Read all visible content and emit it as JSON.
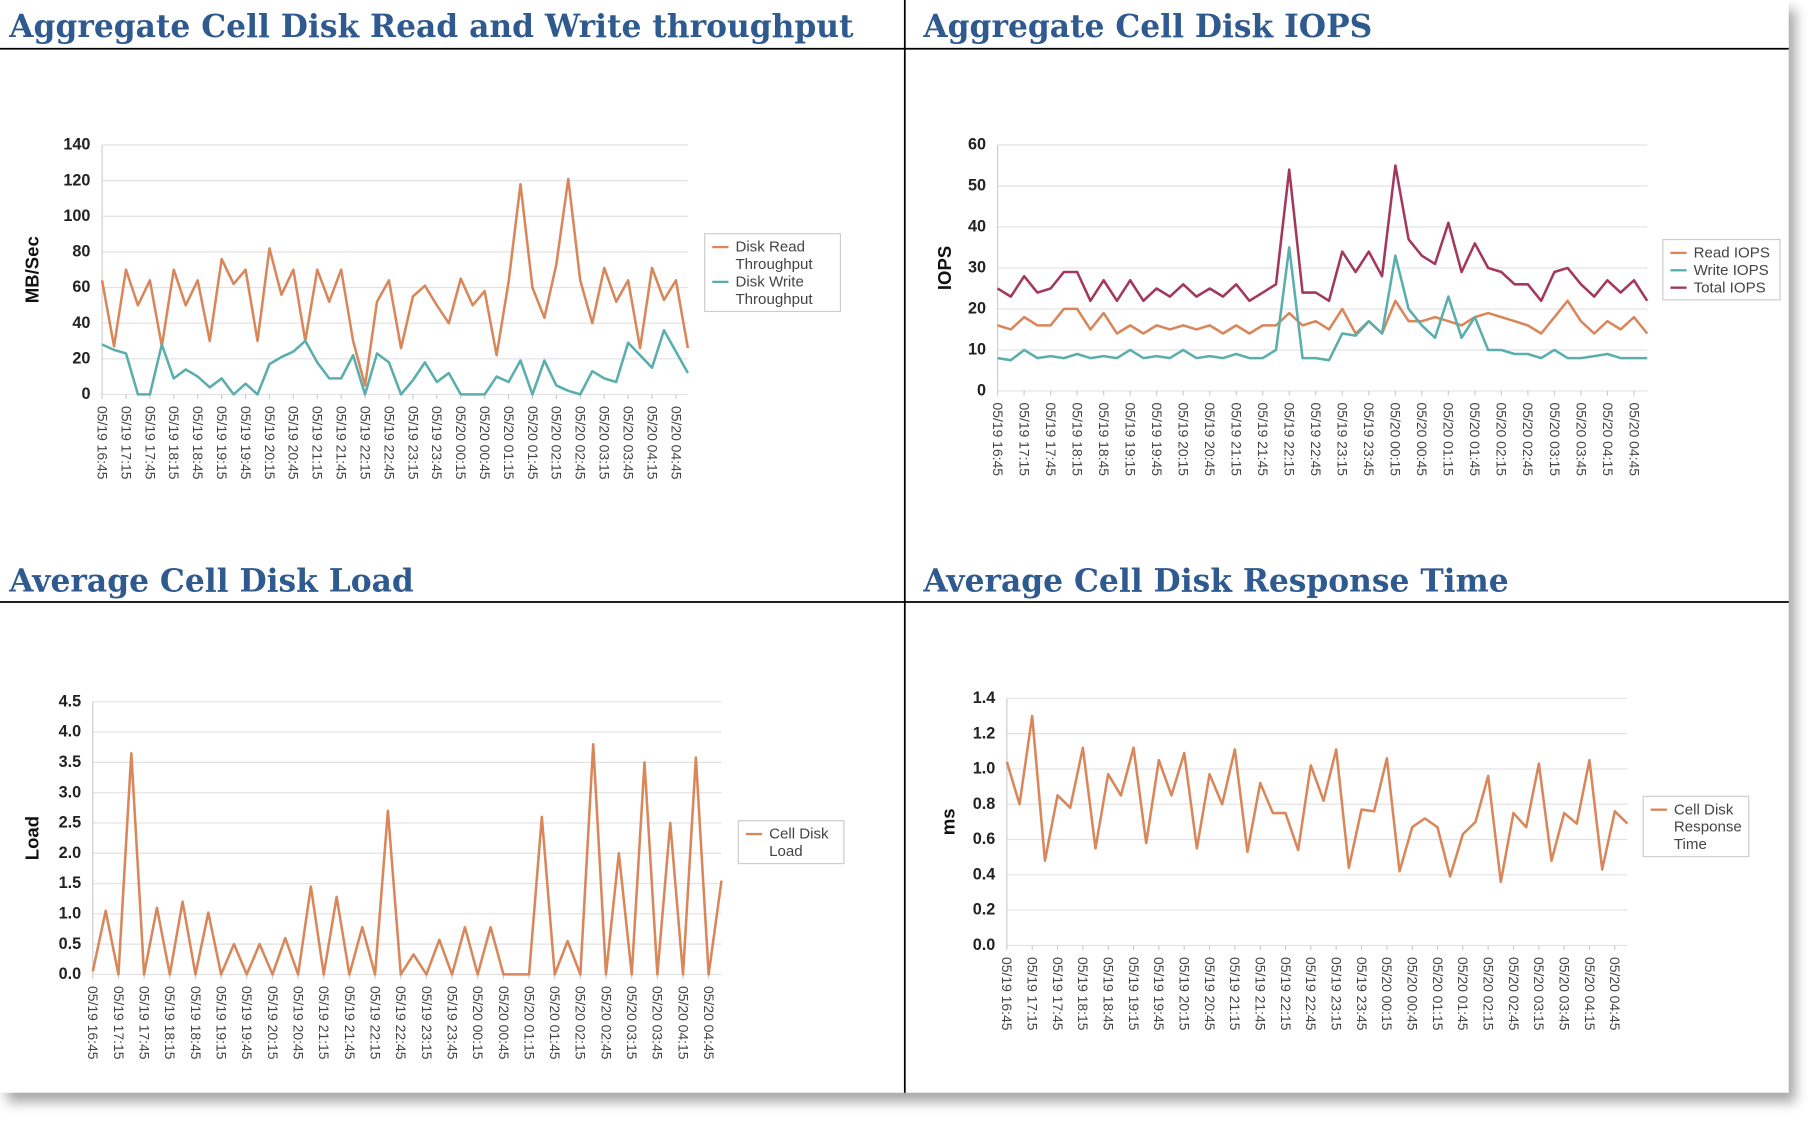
{
  "chart_data": [
    {
      "type": "line",
      "title": "Aggregate Cell Disk Read and Write throughput",
      "y_label": "MB/Sec",
      "categories": [
        "05/19 16:45",
        null,
        "05/19 17:15",
        null,
        "05/19 17:45",
        null,
        "05/19 18:15",
        null,
        "05/19 18:45",
        null,
        "05/19 19:15",
        null,
        "05/19 19:45",
        null,
        "05/19 20:15",
        null,
        "05/19 20:45",
        null,
        "05/19 21:15",
        null,
        "05/19 21:45",
        null,
        "05/19 22:15",
        null,
        "05/19 22:45",
        null,
        "05/19 23:15",
        null,
        "05/19 23:45",
        null,
        "05/20 00:15",
        null,
        "05/20 00:45",
        null,
        "05/20 01:15",
        null,
        "05/20 01:45",
        null,
        "05/20 02:15",
        null,
        "05/20 02:45",
        null,
        "05/20 03:15",
        null,
        "05/20 03:45",
        null,
        "05/20 04:15",
        null,
        "05/20 04:45",
        null
      ],
      "series": [
        {
          "name": "Disk Read Throughput",
          "color": "#d9875a",
          "values": [
            64,
            27,
            70,
            50,
            64,
            27,
            70,
            50,
            64,
            30,
            76,
            62,
            70,
            30,
            82,
            56,
            70,
            30,
            70,
            52,
            70,
            30,
            5,
            52,
            64,
            26,
            55,
            61,
            50,
            40,
            65,
            50,
            58,
            22,
            63,
            118,
            60,
            43,
            73,
            121,
            64,
            40,
            71,
            52,
            64,
            26,
            71,
            53,
            64,
            26
          ]
        },
        {
          "name": "Disk Write Throughput",
          "color": "#5aaead",
          "values": [
            28,
            25,
            23,
            0,
            0,
            28,
            9,
            14,
            10,
            4,
            9,
            0,
            6,
            0,
            17,
            21,
            24,
            30,
            18,
            9,
            9,
            22,
            0,
            23,
            18,
            0,
            8,
            18,
            7,
            12,
            0,
            0,
            0,
            10,
            7,
            19,
            0,
            19,
            5,
            2,
            0,
            13,
            9,
            7,
            29,
            22,
            15,
            36,
            24,
            12
          ]
        }
      ],
      "ylim": [
        0,
        140
      ],
      "yticks": [
        0,
        20,
        40,
        60,
        80,
        100,
        120,
        140
      ],
      "grid": true,
      "legend": "right"
    },
    {
      "type": "line",
      "title": "Aggregate Cell Disk IOPS",
      "y_label": "IOPS",
      "categories": [
        "05/19 16:45",
        null,
        "05/19 17:15",
        null,
        "05/19 17:45",
        null,
        "05/19 18:15",
        null,
        "05/19 18:45",
        null,
        "05/19 19:15",
        null,
        "05/19 19:45",
        null,
        "05/19 20:15",
        null,
        "05/19 20:45",
        null,
        "05/19 21:15",
        null,
        "05/19 21:45",
        null,
        "05/19 22:15",
        null,
        "05/19 22:45",
        null,
        "05/19 23:15",
        null,
        "05/19 23:45",
        null,
        "05/20 00:15",
        null,
        "05/20 00:45",
        null,
        "05/20 01:15",
        null,
        "05/20 01:45",
        null,
        "05/20 02:15",
        null,
        "05/20 02:45",
        null,
        "05/20 03:15",
        null,
        "05/20 03:45",
        null,
        "05/20 04:15",
        null,
        "05/20 04:45",
        null
      ],
      "series": [
        {
          "name": "Read IOPS",
          "color": "#d9875a",
          "values": [
            16,
            15,
            18,
            16,
            16,
            20,
            20,
            15,
            19,
            14,
            16,
            14,
            16,
            15,
            16,
            15,
            16,
            14,
            16,
            14,
            16,
            16,
            19,
            16,
            17,
            15,
            20,
            14,
            17,
            14,
            22,
            17,
            17,
            18,
            17,
            16,
            18,
            19,
            18,
            17,
            16,
            14,
            18,
            22,
            17,
            14,
            17,
            15,
            18,
            14
          ]
        },
        {
          "name": "Write IOPS",
          "color": "#5aaead",
          "values": [
            8,
            7.5,
            10,
            8,
            8.5,
            8,
            9,
            8,
            8.5,
            8,
            10,
            8,
            8.5,
            8,
            10,
            8,
            8.5,
            8,
            9,
            8,
            8,
            10,
            35,
            8,
            8,
            7.5,
            14,
            13.5,
            17,
            14,
            33,
            20,
            16,
            13,
            23,
            13,
            18,
            10,
            10,
            9,
            9,
            8,
            10,
            8,
            8,
            8.5,
            9,
            8,
            8,
            8
          ]
        },
        {
          "name": "Total IOPS",
          "color": "#a3385f",
          "values": [
            25,
            23,
            28,
            24,
            25,
            29,
            29,
            22,
            27,
            22,
            27,
            22,
            25,
            23,
            26,
            23,
            25,
            23,
            26,
            22,
            24,
            26,
            54,
            24,
            24,
            22,
            34,
            29,
            34,
            28,
            55,
            37,
            33,
            31,
            41,
            29,
            36,
            30,
            29,
            26,
            26,
            22,
            29,
            30,
            26,
            23,
            27,
            24,
            27,
            22
          ]
        }
      ],
      "ylim": [
        0,
        60
      ],
      "yticks": [
        0,
        10,
        20,
        30,
        40,
        50,
        60
      ],
      "grid": true,
      "legend": "right"
    },
    {
      "type": "line",
      "title": "Average Cell Disk Load",
      "y_label": "Load",
      "categories": [
        "05/19 16:45",
        null,
        "05/19 17:15",
        null,
        "05/19 17:45",
        null,
        "05/19 18:15",
        null,
        "05/19 18:45",
        null,
        "05/19 19:15",
        null,
        "05/19 19:45",
        null,
        "05/19 20:15",
        null,
        "05/19 20:45",
        null,
        "05/19 21:15",
        null,
        "05/19 21:45",
        null,
        "05/19 22:15",
        null,
        "05/19 22:45",
        null,
        "05/19 23:15",
        null,
        "05/19 23:45",
        null,
        "05/20 00:15",
        null,
        "05/20 00:45",
        null,
        "05/20 01:15",
        null,
        "05/20 01:45",
        null,
        "05/20 02:15",
        null,
        "05/20 02:45",
        null,
        "05/20 03:15",
        null,
        "05/20 03:45",
        null,
        "05/20 04:15",
        null,
        "05/20 04:45",
        null
      ],
      "series": [
        {
          "name": "Cell Disk Load",
          "color": "#d9875a",
          "values": [
            0.05,
            1.05,
            0,
            3.65,
            0,
            1.1,
            0,
            1.2,
            0,
            1.02,
            0,
            0.5,
            0,
            0.5,
            0,
            0.6,
            0,
            1.45,
            0,
            1.28,
            0,
            0.78,
            0,
            2.7,
            0,
            0.33,
            0,
            0.57,
            0,
            0.78,
            0,
            0.78,
            0,
            0,
            0,
            2.6,
            0,
            0.55,
            0,
            3.8,
            0,
            2.0,
            0,
            3.5,
            0,
            2.5,
            0,
            3.58,
            0,
            1.55
          ]
        }
      ],
      "ylim": [
        0,
        4.5
      ],
      "yticks": [
        {
          "value": 0,
          "label": "0.0"
        },
        0.5,
        {
          "value": 1,
          "label": "1.0"
        },
        1.5,
        {
          "value": 2,
          "label": "2.0"
        },
        2.5,
        {
          "value": 3,
          "label": "3.0"
        },
        3.5,
        {
          "value": 4,
          "label": "4.0"
        },
        4.5
      ],
      "grid": true,
      "legend": "right"
    },
    {
      "type": "line",
      "title": "Average Cell Disk Response Time",
      "y_label": "ms",
      "categories": [
        "05/19 16:45",
        null,
        "05/19 17:15",
        null,
        "05/19 17:45",
        null,
        "05/19 18:15",
        null,
        "05/19 18:45",
        null,
        "05/19 19:15",
        null,
        "05/19 19:45",
        null,
        "05/19 20:15",
        null,
        "05/19 20:45",
        null,
        "05/19 21:15",
        null,
        "05/19 21:45",
        null,
        "05/19 22:15",
        null,
        "05/19 22:45",
        null,
        "05/19 23:15",
        null,
        "05/19 23:45",
        null,
        "05/20 00:15",
        null,
        "05/20 00:45",
        null,
        "05/20 01:15",
        null,
        "05/20 01:45",
        null,
        "05/20 02:15",
        null,
        "05/20 02:45",
        null,
        "05/20 03:15",
        null,
        "05/20 03:45",
        null,
        "05/20 04:15",
        null,
        "05/20 04:45",
        null
      ],
      "series": [
        {
          "name": "Cell Disk Response Time",
          "color": "#d9875a",
          "values": [
            1.04,
            0.8,
            1.3,
            0.48,
            0.85,
            0.78,
            1.12,
            0.55,
            0.97,
            0.85,
            1.12,
            0.58,
            1.05,
            0.85,
            1.09,
            0.55,
            0.97,
            0.8,
            1.11,
            0.53,
            0.92,
            0.75,
            0.75,
            0.54,
            1.02,
            0.82,
            1.11,
            0.44,
            0.77,
            0.76,
            1.06,
            0.42,
            0.67,
            0.72,
            0.67,
            0.39,
            0.63,
            0.7,
            0.96,
            0.36,
            0.75,
            0.67,
            1.03,
            0.48,
            0.75,
            0.69,
            1.05,
            0.43,
            0.76,
            0.69
          ]
        }
      ],
      "ylim": [
        0,
        1.4
      ],
      "yticks": [
        {
          "value": 0,
          "label": "0.0"
        },
        0.2,
        0.4,
        0.6,
        0.8,
        {
          "value": 1,
          "label": "1.0"
        },
        1.2,
        1.4
      ],
      "grid": true,
      "legend": "right"
    }
  ]
}
